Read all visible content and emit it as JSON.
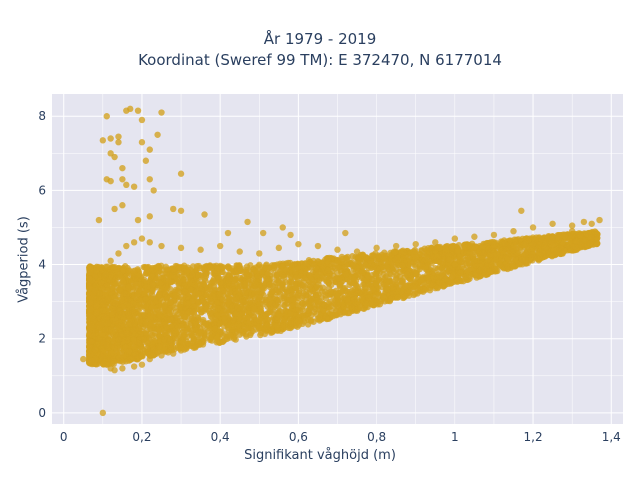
{
  "chart_data": {
    "type": "scatter",
    "title_lines": [
      "År 1979 - 2019",
      "Koordinat (Sweref 99 TM): E 372470, N 6177014"
    ],
    "xlabel": "Signifikant våghöjd (m)",
    "ylabel": "Vågperiod (s)",
    "xlim": [
      -0.03,
      1.43
    ],
    "ylim": [
      -0.3,
      8.6
    ],
    "x_ticks": [
      0,
      0.2,
      0.4,
      0.6,
      0.8,
      1,
      1.2,
      1.4
    ],
    "x_tick_labels": [
      "0",
      "0,2",
      "0,4",
      "0,6",
      "0,8",
      "1",
      "1,2",
      "1,4"
    ],
    "y_ticks": [
      0,
      2,
      4,
      6,
      8
    ],
    "y_tick_labels": [
      "0",
      "2",
      "4",
      "6",
      "8"
    ],
    "grid": true,
    "marker_color": "#d4a21d",
    "background_color": "#e5e5f0",
    "gridline_color": "#ffffff",
    "series": [
      {
        "points_note_free": true,
        "points": [
          [
            0.1,
            0.0
          ],
          [
            0.05,
            1.45
          ],
          [
            0.07,
            1.4
          ],
          [
            0.08,
            1.7
          ],
          [
            0.09,
            2.0
          ],
          [
            0.1,
            2.4
          ],
          [
            0.1,
            3.0
          ],
          [
            0.08,
            3.3
          ],
          [
            0.11,
            1.3
          ],
          [
            0.12,
            1.2
          ],
          [
            0.13,
            1.15
          ],
          [
            0.15,
            1.2
          ],
          [
            0.18,
            1.25
          ],
          [
            0.2,
            1.3
          ],
          [
            0.22,
            1.45
          ],
          [
            0.25,
            1.55
          ],
          [
            0.28,
            1.6
          ],
          [
            0.3,
            1.75
          ],
          [
            0.33,
            1.9
          ],
          [
            0.36,
            2.0
          ],
          [
            0.4,
            2.2
          ],
          [
            0.45,
            2.35
          ],
          [
            0.5,
            2.5
          ],
          [
            0.55,
            2.65
          ],
          [
            0.6,
            2.8
          ],
          [
            0.65,
            3.0
          ],
          [
            0.7,
            3.15
          ],
          [
            0.75,
            3.3
          ],
          [
            0.8,
            3.45
          ],
          [
            0.85,
            3.6
          ],
          [
            0.9,
            3.75
          ],
          [
            0.95,
            3.9
          ],
          [
            1.0,
            4.0
          ],
          [
            1.05,
            4.1
          ],
          [
            1.1,
            4.25
          ],
          [
            1.15,
            4.4
          ],
          [
            1.2,
            4.55
          ],
          [
            1.25,
            4.75
          ],
          [
            1.3,
            4.9
          ],
          [
            1.35,
            5.1
          ],
          [
            1.37,
            5.2
          ],
          [
            0.12,
            4.1
          ],
          [
            0.14,
            4.3
          ],
          [
            0.16,
            4.5
          ],
          [
            0.18,
            4.6
          ],
          [
            0.2,
            4.7
          ],
          [
            0.22,
            4.6
          ],
          [
            0.25,
            4.5
          ],
          [
            0.3,
            4.45
          ],
          [
            0.35,
            4.4
          ],
          [
            0.4,
            4.5
          ],
          [
            0.45,
            4.35
          ],
          [
            0.5,
            4.3
          ],
          [
            0.55,
            4.45
          ],
          [
            0.6,
            4.55
          ],
          [
            0.65,
            4.5
          ],
          [
            0.7,
            4.4
          ],
          [
            0.75,
            4.35
          ],
          [
            0.8,
            4.45
          ],
          [
            0.85,
            4.5
          ],
          [
            0.9,
            4.55
          ],
          [
            0.95,
            4.6
          ],
          [
            1.0,
            4.7
          ],
          [
            1.05,
            4.75
          ],
          [
            1.1,
            4.8
          ],
          [
            1.15,
            4.9
          ],
          [
            1.2,
            5.0
          ],
          [
            1.25,
            5.1
          ],
          [
            1.3,
            5.05
          ],
          [
            1.33,
            5.15
          ],
          [
            0.1,
            7.35
          ],
          [
            0.11,
            8.0
          ],
          [
            0.12,
            7.4
          ],
          [
            0.12,
            7.0
          ],
          [
            0.13,
            6.9
          ],
          [
            0.14,
            7.3
          ],
          [
            0.14,
            7.45
          ],
          [
            0.15,
            6.6
          ],
          [
            0.16,
            8.15
          ],
          [
            0.17,
            8.2
          ],
          [
            0.19,
            8.15
          ],
          [
            0.2,
            7.9
          ],
          [
            0.2,
            7.3
          ],
          [
            0.21,
            6.8
          ],
          [
            0.22,
            7.1
          ],
          [
            0.22,
            6.3
          ],
          [
            0.24,
            7.5
          ],
          [
            0.25,
            8.1
          ],
          [
            0.23,
            6.0
          ],
          [
            0.15,
            6.3
          ],
          [
            0.16,
            6.15
          ],
          [
            0.18,
            6.1
          ],
          [
            0.3,
            6.45
          ],
          [
            0.11,
            6.3
          ],
          [
            0.12,
            6.25
          ],
          [
            0.09,
            5.2
          ],
          [
            0.13,
            5.5
          ],
          [
            0.15,
            5.6
          ],
          [
            0.19,
            5.2
          ],
          [
            0.22,
            5.3
          ],
          [
            0.28,
            5.5
          ],
          [
            0.3,
            5.45
          ],
          [
            0.36,
            5.35
          ],
          [
            0.47,
            5.15
          ],
          [
            0.56,
            5.0
          ],
          [
            0.58,
            4.8
          ],
          [
            0.72,
            4.85
          ],
          [
            1.17,
            5.45
          ],
          [
            0.42,
            4.85
          ],
          [
            0.51,
            4.85
          ]
        ]
      }
    ]
  }
}
